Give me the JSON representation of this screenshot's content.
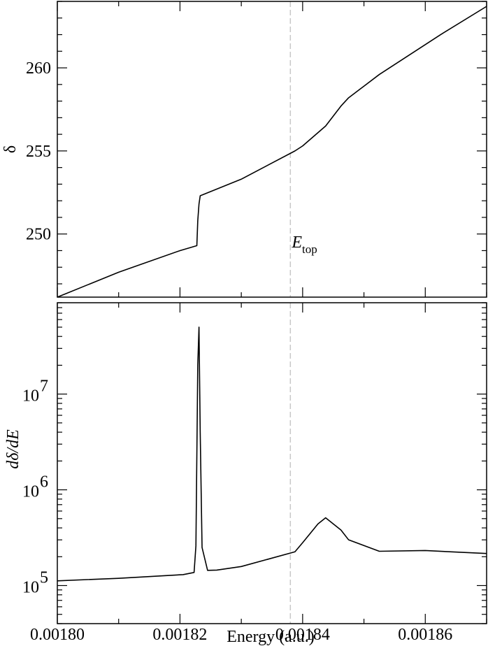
{
  "chart_data": [
    {
      "type": "line",
      "panel": "top",
      "ylabel": "δ",
      "xlim": [
        0.0018,
        0.00187
      ],
      "ylim": [
        246.2,
        264
      ],
      "yticks": [
        250,
        255,
        260
      ],
      "ytick_labels": [
        "250",
        "255",
        "260"
      ],
      "xticks": [
        0.0018,
        0.00182,
        0.00184,
        0.00186
      ],
      "series": [
        {
          "x": [
            0.0018,
            0.00181,
            0.00182,
            0.00182275,
            0.0018229,
            0.0018231,
            0.0018233,
            0.00183,
            0.00183875,
            0.00184,
            0.00184375,
            0.00184625,
            0.0018475,
            0.00185,
            0.0018525,
            0.0018575,
            0.00186,
            0.0018625,
            0.00187
          ],
          "y": [
            246.2,
            247.7,
            249.0,
            249.3,
            250.8,
            251.8,
            252.3,
            253.3,
            255.0,
            255.3,
            256.5,
            257.7,
            258.2,
            258.9,
            259.6,
            260.8,
            261.4,
            262.0,
            263.7
          ]
        }
      ]
    },
    {
      "type": "line",
      "panel": "bottom",
      "ylabel": "dδ/dE",
      "xlabel": "Energy (a.u.)",
      "xlim": [
        0.0018,
        0.00187
      ],
      "yscale": "log",
      "ylim": [
        40000,
        90000000
      ],
      "yticks": [
        100000,
        1000000,
        10000000
      ],
      "ytick_labels": [
        "10",
        "10",
        "10"
      ],
      "ytick_exponents": [
        "5",
        "6",
        "7"
      ],
      "xticks": [
        0.0018,
        0.00182,
        0.00184,
        0.00186
      ],
      "xtick_labels": [
        "0.00180",
        "0.00182",
        "0.00184",
        "0.00186"
      ],
      "series": [
        {
          "x": [
            0.0018,
            0.00181,
            0.0018205,
            0.0018223,
            0.0018226,
            0.0018229,
            0.0018231,
            0.0018233,
            0.0018236,
            0.0018245,
            0.001826,
            0.00183,
            0.00183875,
            0.00184,
            0.0018425,
            0.00184375,
            0.00184625,
            0.0018475,
            0.0018525,
            0.00186,
            0.00187
          ],
          "y": [
            112000,
            119000,
            130000,
            137000,
            260000,
            20000000,
            50000000,
            4000000,
            250000,
            144000,
            145000,
            158000,
            225000,
            280000,
            440000,
            510000,
            380000,
            300000,
            228000,
            232000,
            216000
          ]
        }
      ],
      "marker": {
        "x": 0.001838,
        "label_main": "E",
        "label_sub": "top"
      }
    }
  ]
}
